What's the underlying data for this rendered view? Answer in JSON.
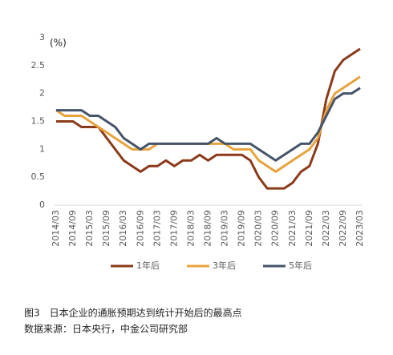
{
  "chart_data": {
    "type": "line",
    "y_unit_label": "(%)",
    "categories": [
      "2014/03",
      null,
      "2014/09",
      null,
      "2015/03",
      null,
      "2015/09",
      null,
      "2016/03",
      null,
      "2016/09",
      null,
      "2017/03",
      null,
      "2017/09",
      null,
      "2018/03",
      null,
      "2018/09",
      null,
      "2019/03",
      null,
      "2019/09",
      null,
      "2020/03",
      null,
      "2020/09",
      null,
      "2021/03",
      null,
      "2021/09",
      null,
      "2022/03",
      null,
      "2022/09",
      null,
      "2023/03"
    ],
    "series": [
      {
        "name": "1年后",
        "color": "#8b3a1a",
        "values": [
          1.5,
          1.5,
          1.5,
          1.4,
          1.4,
          1.4,
          1.2,
          1.0,
          0.8,
          0.7,
          0.6,
          0.7,
          0.7,
          0.8,
          0.7,
          0.8,
          0.8,
          0.9,
          0.8,
          0.9,
          0.9,
          0.9,
          0.9,
          0.8,
          0.5,
          0.3,
          0.3,
          0.3,
          0.4,
          0.6,
          0.7,
          1.1,
          1.9,
          2.4,
          2.6,
          2.7,
          2.8
        ]
      },
      {
        "name": "3年后",
        "color": "#e8a33d",
        "values": [
          1.7,
          1.6,
          1.6,
          1.6,
          1.5,
          1.4,
          1.3,
          1.2,
          1.1,
          1.0,
          1.0,
          1.0,
          1.1,
          1.1,
          1.1,
          1.1,
          1.1,
          1.1,
          1.1,
          1.1,
          1.1,
          1.0,
          1.0,
          1.0,
          0.8,
          0.7,
          0.6,
          0.7,
          0.8,
          0.9,
          1.0,
          1.2,
          1.7,
          2.0,
          2.1,
          2.2,
          2.3
        ]
      },
      {
        "name": "5年后",
        "color": "#44546a",
        "values": [
          1.7,
          1.7,
          1.7,
          1.7,
          1.6,
          1.6,
          1.5,
          1.4,
          1.2,
          1.1,
          1.0,
          1.1,
          1.1,
          1.1,
          1.1,
          1.1,
          1.1,
          1.1,
          1.1,
          1.2,
          1.1,
          1.1,
          1.1,
          1.1,
          1.0,
          0.9,
          0.8,
          0.9,
          1.0,
          1.1,
          1.1,
          1.3,
          1.6,
          1.9,
          2.0,
          2.0,
          2.1
        ]
      }
    ],
    "ylim": [
      0,
      3
    ],
    "yticks": [
      0,
      0.5,
      1,
      1.5,
      2,
      2.5,
      3
    ],
    "grid": false,
    "legend": "bottom",
    "caption": "图3　日本企业的通胀预期达到统计开始后的最高点",
    "source": "数据来源：日本央行，中金公司研究部"
  }
}
